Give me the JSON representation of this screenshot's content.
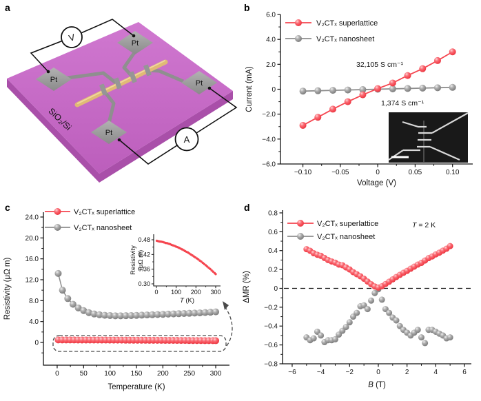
{
  "figure": {
    "panel_labels": [
      "a",
      "b",
      "c",
      "d"
    ],
    "colors": {
      "red": "#F5454F",
      "gray": "#8D8D8D",
      "substrate_magenta": "#C76AC7",
      "substrate_edge": "#A94FA9",
      "pad_gray": "#9A9A9A",
      "rod_gold": "#E0BA76",
      "axis_black": "#111111"
    }
  },
  "panel_a": {
    "substrate_label": "SiO₂/Si",
    "electrode_labels": [
      "Pt",
      "Pt",
      "Pt",
      "Pt"
    ],
    "voltmeter_label": "V",
    "ammeter_label": "A"
  },
  "chart_data": [
    {
      "id": "b",
      "type": "scatter",
      "xlabel": "Voltage (V)",
      "ylabel": "Current (mA)",
      "xlim": [
        -0.13,
        0.127
      ],
      "ylim": [
        -6,
        6
      ],
      "xticks": [
        {
          "v": -0.1,
          "l": "−0.10"
        },
        {
          "v": -0.05,
          "l": "−0.05"
        },
        {
          "v": 0,
          "l": "0"
        },
        {
          "v": 0.05,
          "l": "0.05"
        },
        {
          "v": 0.1,
          "l": "0.10"
        }
      ],
      "yticks": [
        {
          "v": 6,
          "l": "6.0"
        },
        {
          "v": 4,
          "l": "4.0"
        },
        {
          "v": 2,
          "l": "2.0"
        },
        {
          "v": 0,
          "l": "0"
        },
        {
          "v": -2,
          "l": "−2.0"
        },
        {
          "v": -4,
          "l": "−4.0"
        },
        {
          "v": -6,
          "l": "−6.0"
        }
      ],
      "series": [
        {
          "name": "V₂CTₓ superlattice",
          "color_key": "red",
          "x": [
            -0.1,
            -0.08,
            -0.06,
            -0.04,
            -0.02,
            0,
            0.02,
            0.04,
            0.06,
            0.08,
            0.1
          ],
          "y": [
            -2.9,
            -2.25,
            -1.6,
            -1.0,
            -0.45,
            0.05,
            0.5,
            1.1,
            1.65,
            2.3,
            3.0
          ]
        },
        {
          "name": "V₂CTₓ nanosheet",
          "color_key": "gray",
          "x": [
            -0.1,
            -0.08,
            -0.06,
            -0.04,
            -0.02,
            0,
            0.02,
            0.04,
            0.06,
            0.08,
            0.1
          ],
          "y": [
            -0.15,
            -0.12,
            -0.09,
            -0.06,
            -0.03,
            0,
            0.03,
            0.06,
            0.09,
            0.12,
            0.15
          ]
        }
      ],
      "annotations": [
        "32,105 S cm⁻¹",
        "1,374 S cm⁻¹"
      ]
    },
    {
      "id": "c",
      "type": "scatter",
      "xlabel": "Temperature (K)",
      "ylabel": "Resistivity (μΩ m)",
      "xlim": [
        -26,
        326
      ],
      "ylim": [
        -4.35,
        24.92
      ],
      "xticks": [
        {
          "v": 0,
          "l": "0"
        },
        {
          "v": 50,
          "l": "50"
        },
        {
          "v": 100,
          "l": "100"
        },
        {
          "v": 150,
          "l": "150"
        },
        {
          "v": 200,
          "l": "200"
        },
        {
          "v": 250,
          "l": "250"
        },
        {
          "v": 300,
          "l": "300"
        }
      ],
      "yticks": [
        {
          "v": 0,
          "l": "0"
        },
        {
          "v": 4,
          "l": "4.0"
        },
        {
          "v": 8,
          "l": "8.0"
        },
        {
          "v": 12,
          "l": "12.0"
        },
        {
          "v": 16,
          "l": "16.0"
        },
        {
          "v": 20,
          "l": "20.0"
        },
        {
          "v": 24,
          "l": "24.0"
        }
      ],
      "series": [
        {
          "name": "V₂CTₓ superlattice",
          "color_key": "red",
          "x": [
            2,
            9.5,
            17,
            24.5,
            32,
            39.5,
            47,
            54.5,
            62,
            69.5,
            77,
            84.5,
            92,
            99.5,
            107,
            114.5,
            122,
            129.5,
            137,
            144.5,
            152,
            159.5,
            167,
            174.5,
            182,
            189.5,
            197,
            204.5,
            212,
            219.5,
            227,
            234.5,
            242,
            249.5,
            257,
            264.5,
            272,
            279.5,
            287,
            294.5,
            300
          ],
          "y": [
            0.476,
            0.474,
            0.473,
            0.472,
            0.471,
            0.469,
            0.467,
            0.466,
            0.464,
            0.462,
            0.459,
            0.457,
            0.455,
            0.452,
            0.45,
            0.447,
            0.444,
            0.441,
            0.438,
            0.434,
            0.431,
            0.428,
            0.424,
            0.42,
            0.416,
            0.412,
            0.408,
            0.404,
            0.4,
            0.395,
            0.391,
            0.386,
            0.381,
            0.376,
            0.371,
            0.366,
            0.361,
            0.355,
            0.35,
            0.344,
            0.34
          ]
        },
        {
          "name": "V₂CTₓ nanosheet",
          "color_key": "gray",
          "x": [
            2,
            10,
            20,
            30,
            40,
            50,
            60,
            70,
            80,
            90,
            100,
            110,
            120,
            130,
            140,
            150,
            160,
            170,
            180,
            190,
            200,
            210,
            220,
            230,
            240,
            250,
            260,
            270,
            280,
            290,
            300
          ],
          "y": [
            13.2,
            10.0,
            8.4,
            7.3,
            6.6,
            6.1,
            5.7,
            5.45,
            5.3,
            5.2,
            5.15,
            5.1,
            5.1,
            5.12,
            5.15,
            5.18,
            5.22,
            5.26,
            5.3,
            5.34,
            5.38,
            5.42,
            5.46,
            5.5,
            5.54,
            5.58,
            5.62,
            5.66,
            5.72,
            5.78,
            5.85
          ]
        }
      ],
      "annotations": [],
      "inset": {
        "xlabel": "T (K)",
        "ylabel": "Resistivity (μΩ m)",
        "xticks": [
          {
            "v": 0,
            "l": "0"
          },
          {
            "v": 100,
            "l": "100"
          },
          {
            "v": 200,
            "l": "200"
          },
          {
            "v": 300,
            "l": "300"
          }
        ],
        "yticks": [
          {
            "v": 0.3,
            "l": "0.30"
          },
          {
            "v": 0.36,
            "l": "0.36"
          },
          {
            "v": 0.42,
            "l": "0.42"
          },
          {
            "v": 0.48,
            "l": "0.48"
          }
        ]
      }
    },
    {
      "id": "d",
      "type": "scatter",
      "xlabel": "B (T)",
      "ylabel": "ΔMR (%)",
      "xlim": [
        -6.67,
        6.48
      ],
      "ylim": [
        -0.8,
        0.829
      ],
      "xticks": [
        {
          "v": -6,
          "l": "−6"
        },
        {
          "v": -4,
          "l": "−4"
        },
        {
          "v": -2,
          "l": "−2"
        },
        {
          "v": 0,
          "l": "0"
        },
        {
          "v": 2,
          "l": "2"
        },
        {
          "v": 4,
          "l": "4"
        },
        {
          "v": 6,
          "l": "6"
        }
      ],
      "yticks": [
        {
          "v": 0.8,
          "l": "0.8"
        },
        {
          "v": 0.6,
          "l": "0.6"
        },
        {
          "v": 0.4,
          "l": "0.4"
        },
        {
          "v": 0.2,
          "l": "0.2"
        },
        {
          "v": 0,
          "l": "0"
        },
        {
          "v": -0.2,
          "l": "−0.2"
        },
        {
          "v": -0.4,
          "l": "−0.4"
        },
        {
          "v": -0.6,
          "l": "−0.6"
        },
        {
          "v": -0.8,
          "l": "−0.8"
        }
      ],
      "series": [
        {
          "name": "V₂CTₓ superlattice",
          "color_key": "red",
          "x": [
            -5,
            -4.75,
            -4.5,
            -4.25,
            -4,
            -3.75,
            -3.5,
            -3.25,
            -3,
            -2.75,
            -2.5,
            -2.25,
            -2,
            -1.75,
            -1.5,
            -1.25,
            -1,
            -0.75,
            -0.5,
            -0.25,
            0,
            0.25,
            0.5,
            0.75,
            1,
            1.25,
            1.5,
            1.75,
            2,
            2.25,
            2.5,
            2.75,
            3,
            3.25,
            3.5,
            3.75,
            4,
            4.25,
            4.5,
            4.75,
            5
          ],
          "y": [
            0.415,
            0.398,
            0.372,
            0.356,
            0.345,
            0.322,
            0.3,
            0.285,
            0.272,
            0.252,
            0.245,
            0.222,
            0.2,
            0.172,
            0.15,
            0.128,
            0.102,
            0.072,
            0.044,
            0.02,
            0.008,
            0.022,
            0.046,
            0.07,
            0.095,
            0.12,
            0.143,
            0.165,
            0.185,
            0.208,
            0.23,
            0.252,
            0.27,
            0.295,
            0.32,
            0.338,
            0.36,
            0.378,
            0.4,
            0.42,
            0.448
          ]
        },
        {
          "name": "V₂CTₓ nanosheet",
          "color_key": "gray",
          "x": [
            -5,
            -4.75,
            -4.5,
            -4.25,
            -4,
            -3.75,
            -3.5,
            -3.25,
            -3,
            -2.75,
            -2.5,
            -2.25,
            -2,
            -1.75,
            -1.5,
            -1.25,
            -1,
            -0.75,
            -0.5,
            -0.25,
            0,
            0.25,
            0.5,
            0.75,
            1,
            1.25,
            1.5,
            1.75,
            2,
            2.25,
            2.5,
            2.75,
            3,
            3.25,
            3.5,
            3.75,
            4,
            4.25,
            4.5,
            4.75,
            5
          ],
          "y": [
            -0.52,
            -0.55,
            -0.53,
            -0.46,
            -0.5,
            -0.57,
            -0.55,
            -0.55,
            -0.54,
            -0.49,
            -0.45,
            -0.41,
            -0.36,
            -0.3,
            -0.26,
            -0.19,
            -0.18,
            -0.22,
            -0.13,
            -0.05,
            -0.01,
            -0.12,
            -0.22,
            -0.26,
            -0.31,
            -0.34,
            -0.4,
            -0.44,
            -0.47,
            -0.5,
            -0.47,
            -0.44,
            -0.52,
            -0.58,
            -0.44,
            -0.44,
            -0.46,
            -0.48,
            -0.5,
            -0.53,
            -0.52
          ]
        }
      ],
      "annotations": [
        "T = 2 K"
      ]
    }
  ]
}
